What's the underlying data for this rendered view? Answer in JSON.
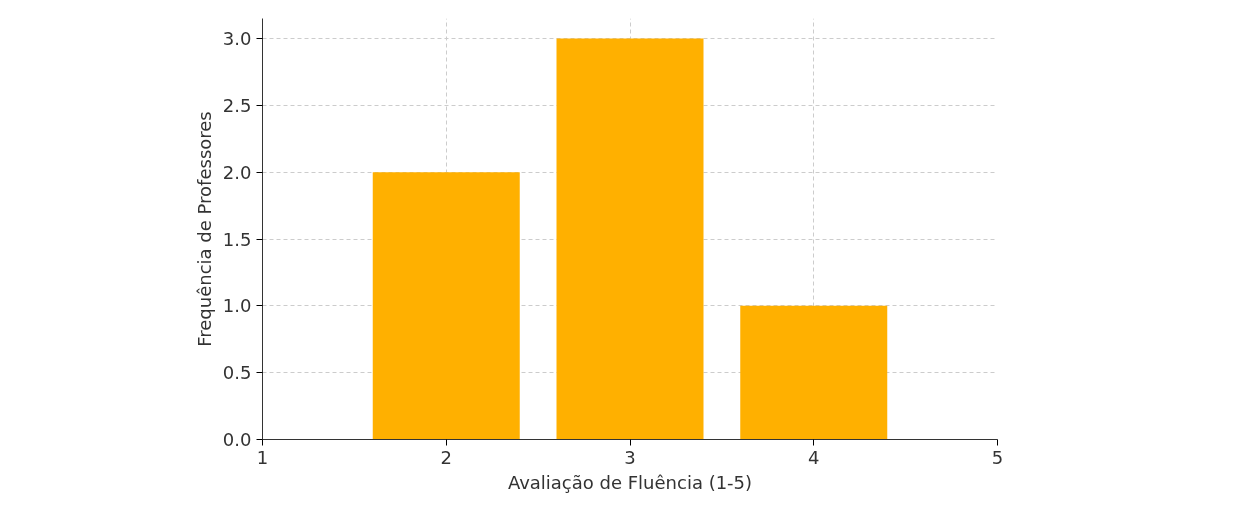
{
  "chart_data": {
    "type": "bar",
    "xlabel": "Avaliação de Fluência (1-5)",
    "ylabel": "Frequência de Professores",
    "x": [
      2,
      3,
      4
    ],
    "values": [
      2,
      3,
      1
    ],
    "color": "#ffb000",
    "xlim": [
      1,
      5
    ],
    "xticks": [
      1,
      2,
      3,
      4,
      5
    ],
    "ylim": [
      0,
      3.15
    ],
    "yticks": [
      {
        "value": 0,
        "label": "0.0"
      },
      {
        "value": 0.5,
        "label": "0.5"
      },
      {
        "value": 1,
        "label": "1.0"
      },
      {
        "value": 1.5,
        "label": "1.5"
      },
      {
        "value": 2,
        "label": "2.0"
      },
      {
        "value": 2.5,
        "label": "2.5"
      },
      {
        "value": 3,
        "label": "3.0"
      }
    ],
    "grid": true,
    "line_style": "dashed"
  }
}
